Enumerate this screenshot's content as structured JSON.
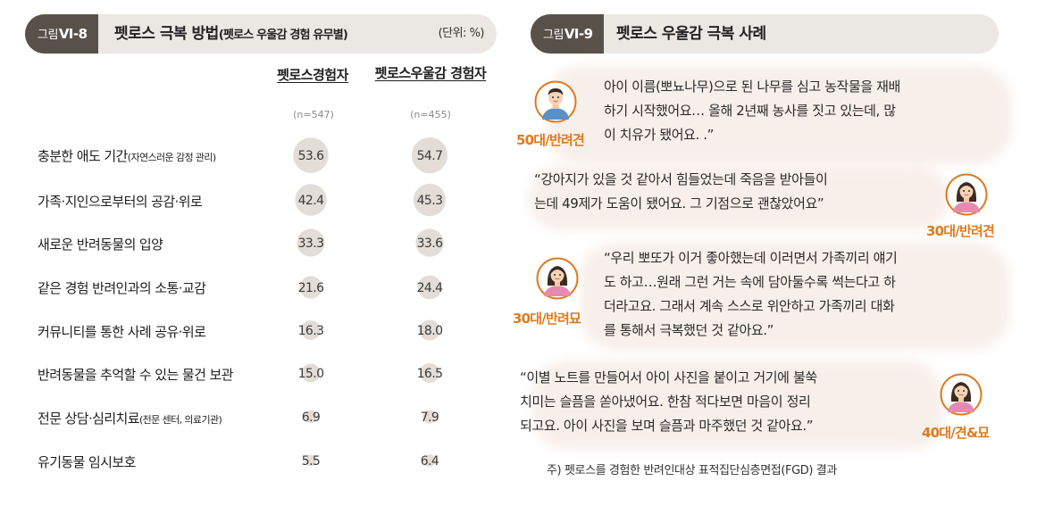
{
  "left_panel": {
    "fig_label": "그림",
    "fig_num": "Ⅵ-8",
    "title": "펫로스 극복 방법",
    "subtitle": "(펫로스 우울감 경험 유무별)",
    "unit": "(단위: %)"
  },
  "right_panel": {
    "fig_label": "그림",
    "fig_num": "Ⅵ-9",
    "title": "펫로스 우울감 극복 사례"
  },
  "chart_data": {
    "type": "table",
    "series": [
      {
        "name": "펫로스경험자",
        "n_label": "(n=547)",
        "values": [
          53.6,
          42.4,
          33.3,
          21.6,
          16.3,
          15.0,
          6.9,
          5.5
        ]
      },
      {
        "name": "펫로스우울감 경험자",
        "n_label": "(n=455)",
        "values": [
          54.7,
          45.3,
          33.6,
          24.4,
          18.0,
          16.5,
          7.9,
          6.4
        ]
      }
    ],
    "categories": [
      {
        "main": "충분한 애도 기간",
        "sub": "(자연스러운 감정 관리)"
      },
      {
        "main": "가족·지인으로부터의 공감·위로",
        "sub": ""
      },
      {
        "main": "새로운 반려동물의 입양",
        "sub": ""
      },
      {
        "main": "같은 경험 반려인과의 소통·교감",
        "sub": ""
      },
      {
        "main": "커뮤니티를 통한 사례 공유·위로",
        "sub": ""
      },
      {
        "main": "반려동물을 추억할 수 있는 물건 보관",
        "sub": ""
      },
      {
        "main": "전문 상담·심리치료",
        "sub": "(전문 센터, 의료기관)"
      },
      {
        "main": "유기동물 임시보호",
        "sub": ""
      }
    ],
    "value_labels": [
      [
        "53.6",
        "42.4",
        "33.3",
        "21.6",
        "16.3",
        "15.0",
        "6.9",
        "5.5"
      ],
      [
        "54.7",
        "45.3",
        "33.6",
        "24.4",
        "18.0",
        "16.5",
        "7.9",
        "6.4"
      ]
    ],
    "bubble_color": "#e3ddd7"
  },
  "cases": [
    {
      "who": "50대/반려견",
      "lines": [
        "아이 이름(뽀뇨나무)으로 된 나무를 심고 농작물을 재배",
        "하기 시작했어요… 올해 2년째 농사를 짓고 있는데, 많",
        "이 치유가 됐어요. .”"
      ],
      "avatar": "man-avatar-icon"
    },
    {
      "who": "30대/반려견",
      "lines": [
        "“강아지가 있을 것 같아서 힘들었는데 죽음을 받아들이",
        "는데 49제가 도움이 됐어요. 그 기점으로 괜찮았어요”"
      ],
      "avatar": "woman-avatar-icon"
    },
    {
      "who": "30대/반려묘",
      "lines": [
        "“우리 뽀또가 이거 좋아했는데 이러면서 가족끼리 얘기",
        "도 하고…원래 그런 거는 속에 담아둘수록 썩는다고 하",
        "더라고요. 그래서 계속 스스로 위안하고 가족끼리 대화",
        "를 통해서 극복했던 것 같아요.”"
      ],
      "avatar": "woman-avatar-icon"
    },
    {
      "who": "40대/견&묘",
      "lines": [
        "“이별 노트를 만들어서 아이 사진을 붙이고 거기에 불쑥",
        "치미는 슬픔을 쏟아냈어요. 한참 적다보면 마음이 정리",
        "되고요. 아이 사진을 보며 슬픔과 마주했던 것 같아요.”"
      ],
      "avatar": "woman-avatar-icon"
    }
  ],
  "note": "주) 펫로스를 경험한 반려인대상 표적집단심층면접(FGD) 결과",
  "colors": {
    "badge": "#58514a",
    "header": "#ebe8e4",
    "accent": "#e07a1e",
    "cloud": "#f7efea"
  }
}
